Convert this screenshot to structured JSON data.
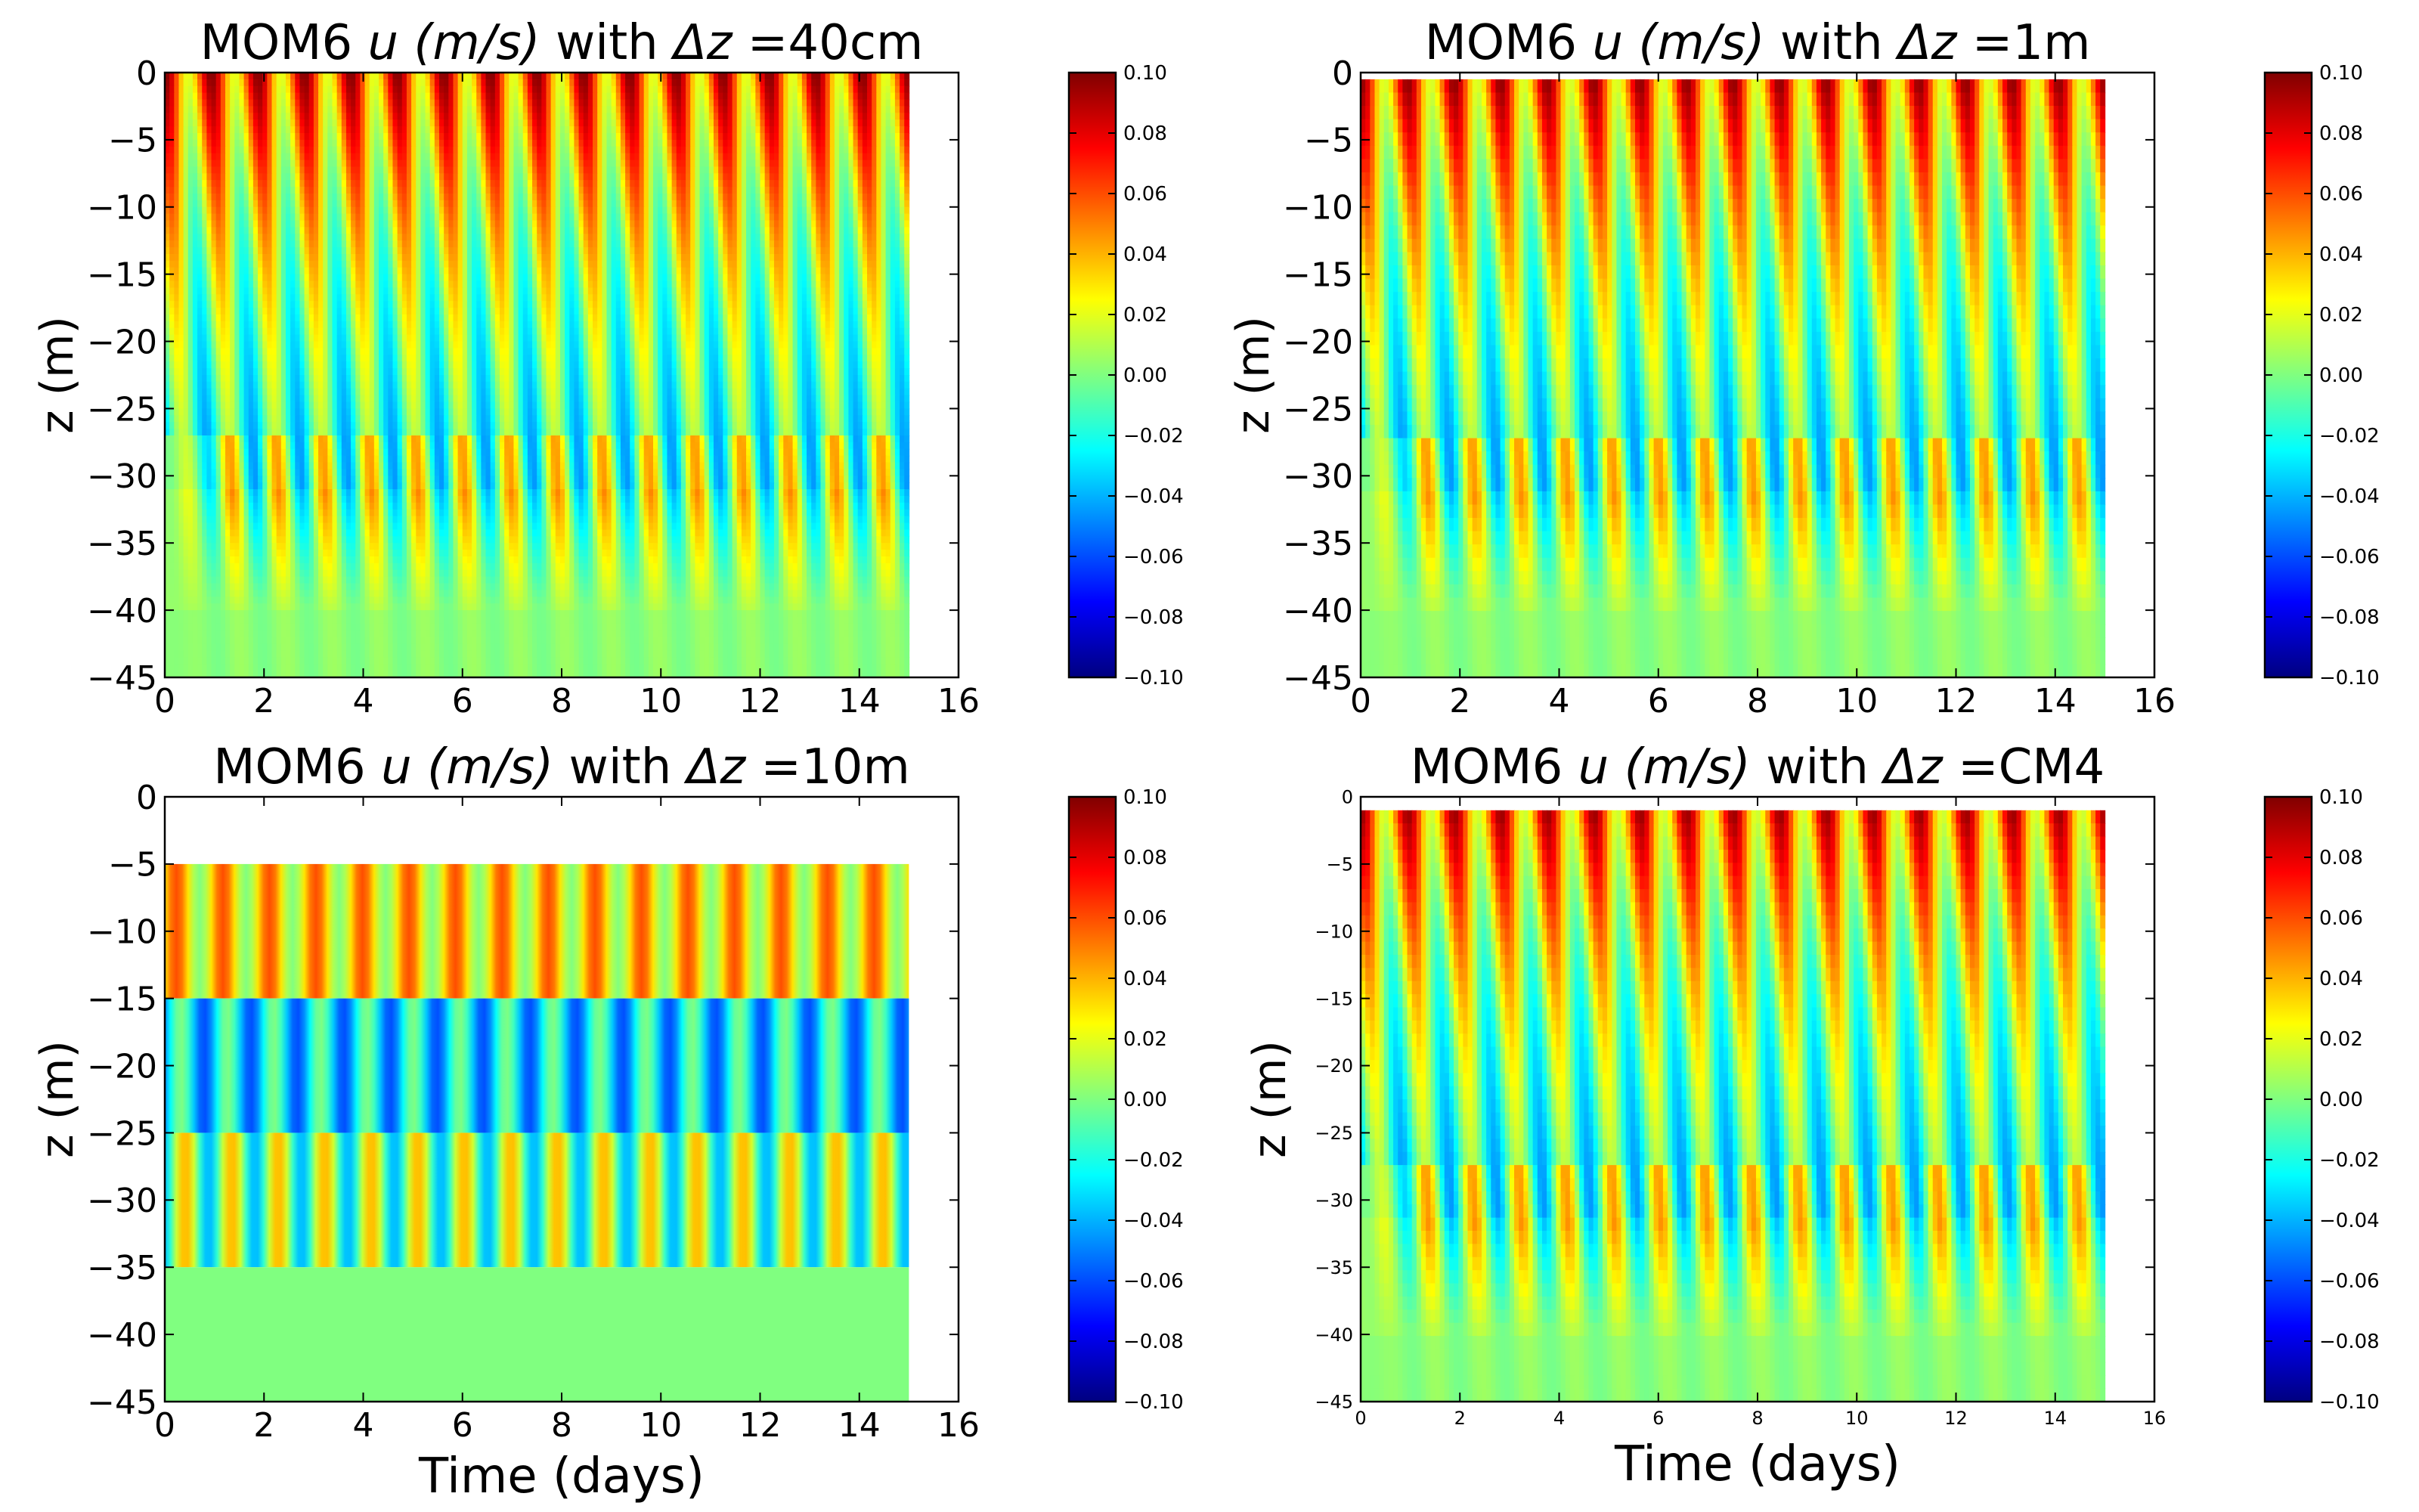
{
  "figure": {
    "colormap": "jet",
    "colormap_stops": [
      "#000080",
      "#0000ff",
      "#00ffff",
      "#80ff80",
      "#ffff00",
      "#ff0000",
      "#800000"
    ]
  },
  "chart_data": [
    {
      "type": "heatmap",
      "title_prefix": "MOM6 ",
      "title_math": "u (m/s)",
      "title_mid": " with ",
      "title_delta": "Δz",
      "title_suffix": " =40cm",
      "xlabel": "",
      "ylabel": "z (m)",
      "xlim": [
        0,
        16
      ],
      "ylim": [
        -45,
        0
      ],
      "xticks": [
        0,
        2,
        4,
        6,
        8,
        10,
        12,
        14,
        16
      ],
      "yticks": [
        0,
        -5,
        -10,
        -15,
        -20,
        -25,
        -30,
        -35,
        -40,
        -45
      ],
      "data_extent": {
        "time_days": [
          0,
          15
        ],
        "z_m": [
          -45,
          0
        ]
      },
      "oscillation_cycles": 16,
      "colorbar": {
        "range": [
          -0.1,
          0.1
        ],
        "ticks": [
          "0.10",
          "0.08",
          "0.06",
          "0.04",
          "0.02",
          "0.00",
          "−0.02",
          "−0.04",
          "−0.06",
          "−0.08",
          "−0.10"
        ]
      }
    },
    {
      "type": "heatmap",
      "title_prefix": "MOM6 ",
      "title_math": "u (m/s)",
      "title_mid": " with ",
      "title_delta": "Δz",
      "title_suffix": " =1m",
      "xlabel": "",
      "ylabel": "z (m)",
      "xlim": [
        0,
        16
      ],
      "ylim": [
        -45,
        0
      ],
      "xticks": [
        0,
        2,
        4,
        6,
        8,
        10,
        12,
        14,
        16
      ],
      "yticks": [
        0,
        -5,
        -10,
        -15,
        -20,
        -25,
        -30,
        -35,
        -40,
        -45
      ],
      "data_extent": {
        "time_days": [
          0,
          15
        ],
        "z_m": [
          -45,
          -0.5
        ]
      },
      "oscillation_cycles": 16,
      "colorbar": {
        "range": [
          -0.1,
          0.1
        ],
        "ticks": [
          "0.10",
          "0.08",
          "0.06",
          "0.04",
          "0.02",
          "0.00",
          "−0.02",
          "−0.04",
          "−0.06",
          "−0.08",
          "−0.10"
        ]
      }
    },
    {
      "type": "heatmap",
      "title_prefix": "MOM6 ",
      "title_math": "u (m/s)",
      "title_mid": " with ",
      "title_delta": "Δz",
      "title_suffix": " =10m",
      "xlabel": "Time (days)",
      "ylabel": "z (m)",
      "xlim": [
        0,
        16
      ],
      "ylim": [
        -45,
        0
      ],
      "xticks": [
        0,
        2,
        4,
        6,
        8,
        10,
        12,
        14,
        16
      ],
      "yticks": [
        0,
        -5,
        -10,
        -15,
        -20,
        -25,
        -30,
        -35,
        -40,
        -45
      ],
      "data_extent": {
        "time_days": [
          0,
          15
        ],
        "z_m": [
          -45,
          -5
        ]
      },
      "oscillation_cycles": 16,
      "layers": [
        {
          "z_top": -5,
          "z_bottom": -15,
          "u_range": [
            0.0,
            0.06
          ]
        },
        {
          "z_top": -15,
          "z_bottom": -25,
          "u_range": [
            -0.06,
            0.0
          ]
        },
        {
          "z_top": -25,
          "z_bottom": -35,
          "u_range": [
            -0.04,
            0.04
          ]
        },
        {
          "z_top": -35,
          "z_bottom": -45,
          "u_range": [
            0.0,
            0.0
          ]
        }
      ],
      "colorbar": {
        "range": [
          -0.1,
          0.1
        ],
        "ticks": [
          "0.10",
          "0.08",
          "0.06",
          "0.04",
          "0.02",
          "0.00",
          "−0.02",
          "−0.04",
          "−0.06",
          "−0.08",
          "−0.10"
        ]
      }
    },
    {
      "type": "heatmap",
      "title_prefix": "MOM6 ",
      "title_math": "u (m/s)",
      "title_mid": " with ",
      "title_delta": "Δz",
      "title_suffix": " =CM4",
      "xlabel": "Time (days)",
      "ylabel": "z (m)",
      "xlim": [
        0,
        16
      ],
      "ylim": [
        -45,
        0
      ],
      "xticks": [
        0,
        2,
        4,
        6,
        8,
        10,
        12,
        14,
        16
      ],
      "yticks": [
        0,
        -5,
        -10,
        -15,
        -20,
        -25,
        -30,
        -35,
        -40,
        -45
      ],
      "data_extent": {
        "time_days": [
          0,
          15
        ],
        "z_m": [
          -45,
          -1
        ]
      },
      "oscillation_cycles": 16,
      "colorbar": {
        "range": [
          -0.1,
          0.1
        ],
        "ticks": [
          "0.10",
          "0.08",
          "0.06",
          "0.04",
          "0.02",
          "0.00",
          "−0.02",
          "−0.04",
          "−0.06",
          "−0.08",
          "−0.10"
        ]
      }
    }
  ]
}
